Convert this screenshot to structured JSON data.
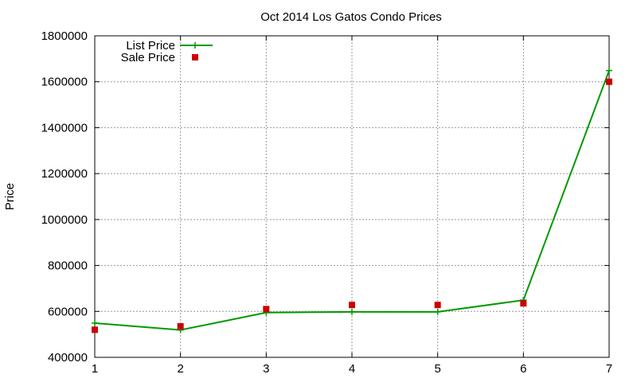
{
  "chart_data": {
    "type": "line",
    "title": "Oct 2014 Los Gatos Condo Prices",
    "xlabel": "",
    "ylabel": "Price",
    "xlim": [
      1,
      7
    ],
    "ylim": [
      400000,
      1800000
    ],
    "x_ticks": [
      "1",
      "2",
      "3",
      "4",
      "5",
      "6",
      "7"
    ],
    "y_ticks": [
      "400000",
      "600000",
      "800000",
      "1000000",
      "1200000",
      "1400000",
      "1600000",
      "1800000"
    ],
    "grid": true,
    "legend_position": "top-left",
    "series": [
      {
        "name": "List Price",
        "kind": "line-with-plus-markers",
        "color": "#009900",
        "x": [
          1,
          2,
          3,
          4,
          5,
          6,
          7
        ],
        "y": [
          549000,
          519000,
          595000,
          598000,
          598000,
          649000,
          1649000
        ]
      },
      {
        "name": "Sale Price",
        "kind": "square-points",
        "color": "#cc0000",
        "x": [
          1,
          2,
          3,
          4,
          5,
          6,
          7
        ],
        "y": [
          520000,
          535000,
          610000,
          628000,
          628000,
          635000,
          1600000
        ]
      }
    ]
  }
}
